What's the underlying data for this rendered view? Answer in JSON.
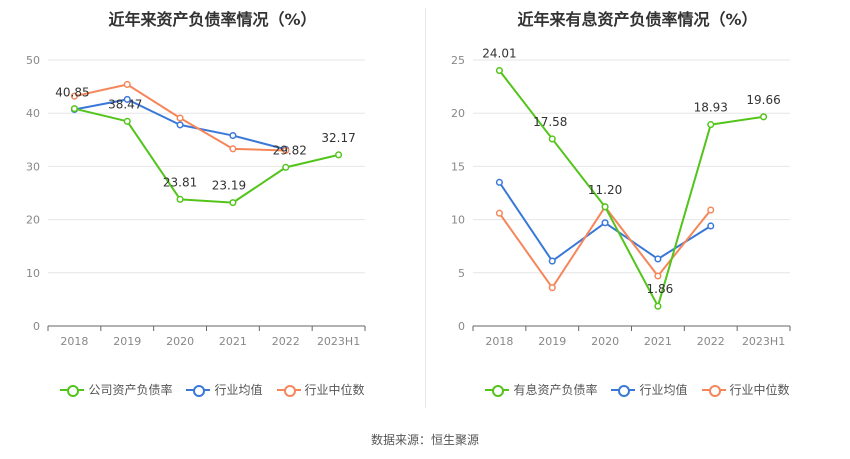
{
  "chart_data": [
    {
      "type": "line",
      "title": "近年来资产负债率情况（%）",
      "categories": [
        "2018",
        "2019",
        "2020",
        "2021",
        "2022",
        "2023H1"
      ],
      "ylim": [
        0,
        50
      ],
      "yticks": [
        0,
        10,
        20,
        30,
        40,
        50
      ],
      "grid": true,
      "legend_position": "bottom",
      "series": [
        {
          "name": "公司资产负债率",
          "color": "#52c41a",
          "values": [
            40.85,
            38.47,
            23.81,
            23.19,
            29.82,
            32.17
          ],
          "labels": [
            "40.85",
            "38.47",
            "23.81",
            "23.19",
            "29.82",
            "32.17"
          ]
        },
        {
          "name": "行业均值",
          "color": "#3a78d8",
          "values": [
            40.7,
            42.6,
            37.8,
            35.8,
            33.2,
            null
          ]
        },
        {
          "name": "行业中位数",
          "color": "#f5865a",
          "values": [
            43.2,
            45.4,
            39.1,
            33.3,
            33.0,
            null
          ]
        }
      ]
    },
    {
      "type": "line",
      "title": "近年来有息资产负债率情况（%）",
      "categories": [
        "2018",
        "2019",
        "2020",
        "2021",
        "2022",
        "2023H1"
      ],
      "ylim": [
        0,
        25
      ],
      "yticks": [
        0,
        5,
        10,
        15,
        20,
        25
      ],
      "grid": true,
      "legend_position": "bottom",
      "series": [
        {
          "name": "有息资产负债率",
          "color": "#52c41a",
          "values": [
            24.01,
            17.58,
            11.2,
            1.86,
            18.93,
            19.66
          ],
          "labels": [
            "24.01",
            "17.58",
            "11.20",
            "1.86",
            "18.93",
            "19.66"
          ]
        },
        {
          "name": "行业均值",
          "color": "#3a78d8",
          "values": [
            13.5,
            6.1,
            9.7,
            6.3,
            9.4,
            null
          ]
        },
        {
          "name": "行业中位数",
          "color": "#f5865a",
          "values": [
            10.6,
            3.6,
            11.2,
            4.7,
            10.9,
            null
          ]
        }
      ]
    }
  ],
  "footer": "数据来源：恒生聚源"
}
